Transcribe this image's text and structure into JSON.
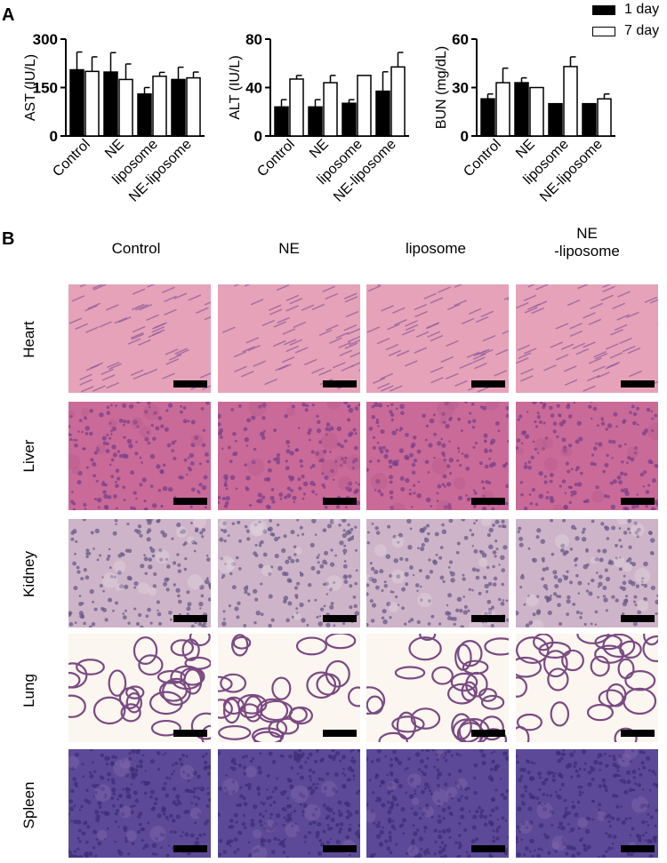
{
  "panel_a": {
    "label": "A"
  },
  "panel_b": {
    "label": "B",
    "columns": [
      "Control",
      "NE",
      "liposome",
      "NE\n-liposome"
    ],
    "rows": [
      "Heart",
      "Liver",
      "Kidney",
      "Lung",
      "Spleen"
    ]
  },
  "legend": [
    {
      "name": "1 day",
      "color": "#000000"
    },
    {
      "name": "7 day",
      "color": "#ffffff"
    }
  ],
  "chart_data": [
    {
      "type": "bar",
      "ylabel": "AST (IU/L)",
      "ylim": [
        0,
        300
      ],
      "yticks": [
        0,
        150,
        300
      ],
      "categories": [
        "Control",
        "NE",
        "liposome",
        "NE-liposome"
      ],
      "series": [
        {
          "name": "1 day",
          "values": [
            205,
            198,
            130,
            175
          ],
          "errors": [
            55,
            60,
            20,
            38
          ]
        },
        {
          "name": "7 day",
          "values": [
            200,
            175,
            185,
            180
          ],
          "errors": [
            45,
            48,
            12,
            18
          ]
        }
      ]
    },
    {
      "type": "bar",
      "ylabel": "ALT (IU/L)",
      "ylim": [
        0,
        80
      ],
      "yticks": [
        0,
        40,
        80
      ],
      "categories": [
        "Control",
        "NE",
        "liposome",
        "NE-liposome"
      ],
      "series": [
        {
          "name": "1 day",
          "values": [
            24,
            24,
            27,
            37
          ],
          "errors": [
            6,
            6,
            3,
            16
          ]
        },
        {
          "name": "7 day",
          "values": [
            47,
            44,
            50,
            57
          ],
          "errors": [
            3,
            6,
            0,
            12
          ]
        }
      ]
    },
    {
      "type": "bar",
      "ylabel": "BUN (mg/dL)",
      "ylim": [
        0,
        60
      ],
      "yticks": [
        0,
        30,
        60
      ],
      "categories": [
        "Control",
        "NE",
        "liposome",
        "NE-liposome"
      ],
      "series": [
        {
          "name": "1 day",
          "values": [
            23,
            33,
            20,
            20
          ],
          "errors": [
            3,
            3,
            0,
            0
          ]
        },
        {
          "name": "7 day",
          "values": [
            33,
            30,
            43,
            23
          ],
          "errors": [
            9,
            0,
            6,
            3
          ]
        }
      ]
    }
  ],
  "histology_colors": {
    "Heart": {
      "base": "#e6a2b8",
      "cell": "#8e5a9a",
      "accent": "#f3c9d4"
    },
    "Liver": {
      "base": "#c96a98",
      "cell": "#7a3f8a",
      "accent": "#b35a8c"
    },
    "Kidney": {
      "base": "#cdb4c8",
      "cell": "#6a5a8a",
      "accent": "#e8dde3"
    },
    "Lung": {
      "base": "#fbf6ef",
      "cell": "#7a4a82",
      "accent": "#b78ab2"
    },
    "Spleen": {
      "base": "#5c4a98",
      "cell": "#3d2e78",
      "accent": "#8a6fb2"
    }
  }
}
